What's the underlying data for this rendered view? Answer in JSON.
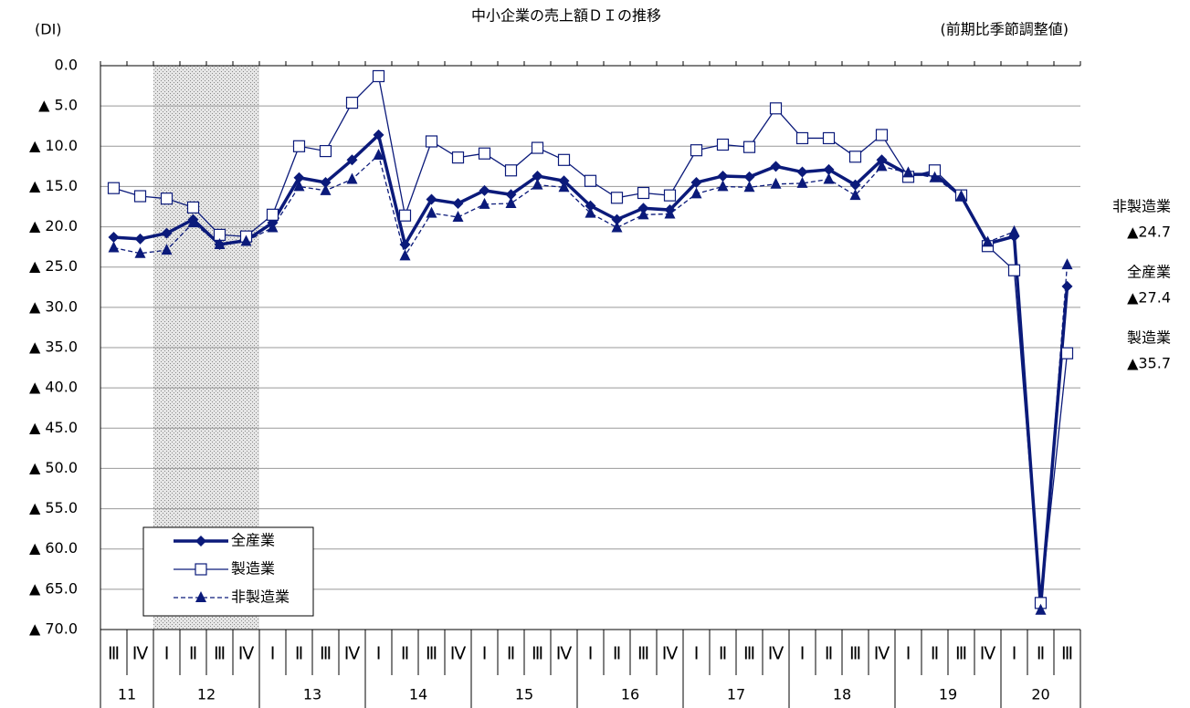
{
  "chart_data": {
    "type": "line",
    "title": "中小企業の売上額ＤＩの推移",
    "y_label": "(DI)",
    "subtitle": "(前期比季節調整値)",
    "categories": [
      "Ⅲ",
      "Ⅳ",
      "Ⅰ",
      "Ⅱ",
      "Ⅲ",
      "Ⅳ",
      "Ⅰ",
      "Ⅱ",
      "Ⅲ",
      "Ⅳ",
      "Ⅰ",
      "Ⅱ",
      "Ⅲ",
      "Ⅳ",
      "Ⅰ",
      "Ⅱ",
      "Ⅲ",
      "Ⅳ",
      "Ⅰ",
      "Ⅱ",
      "Ⅲ",
      "Ⅳ",
      "Ⅰ",
      "Ⅱ",
      "Ⅲ",
      "Ⅳ",
      "Ⅰ",
      "Ⅱ",
      "Ⅲ",
      "Ⅳ",
      "Ⅰ",
      "Ⅱ",
      "Ⅲ",
      "Ⅳ",
      "Ⅰ",
      "Ⅱ",
      "Ⅲ"
    ],
    "years": [
      "11",
      null,
      "12",
      null,
      null,
      null,
      "13",
      null,
      null,
      null,
      "14",
      null,
      null,
      null,
      "15",
      null,
      null,
      null,
      "16",
      null,
      null,
      null,
      "17",
      null,
      null,
      null,
      "18",
      null,
      null,
      null,
      "19",
      null,
      null,
      null,
      "20",
      null,
      null
    ],
    "shaded": [
      2,
      5
    ],
    "ylim": [
      -70,
      0
    ],
    "yticks": [
      {
        "value": 0,
        "label": "0.0"
      },
      {
        "value": -5,
        "label": "▲ 5.0"
      },
      {
        "value": -10,
        "label": "▲ 10.0"
      },
      {
        "value": -15,
        "label": "▲ 15.0"
      },
      {
        "value": -20,
        "label": "▲ 20.0"
      },
      {
        "value": -25,
        "label": "▲ 25.0"
      },
      {
        "value": -30,
        "label": "▲ 30.0"
      },
      {
        "value": -35,
        "label": "▲ 35.0"
      },
      {
        "value": -40,
        "label": "▲ 40.0"
      },
      {
        "value": -45,
        "label": "▲ 45.0"
      },
      {
        "value": -50,
        "label": "▲ 50.0"
      },
      {
        "value": -55,
        "label": "▲ 55.0"
      },
      {
        "value": -60,
        "label": "▲ 60.0"
      },
      {
        "value": -65,
        "label": "▲ 65.0"
      },
      {
        "value": -70,
        "label": "▲ 70.0"
      }
    ],
    "grid": true,
    "series": [
      {
        "name": "全産業",
        "color": "#0b1a7a",
        "marker": "diamond",
        "line": "thick",
        "end_label": "▲27.4",
        "values": [
          -21.3,
          -21.5,
          -20.8,
          -19.1,
          -22.2,
          -21.7,
          -19.5,
          -13.9,
          -14.5,
          -11.7,
          -8.6,
          -22.2,
          -16.6,
          -17.1,
          -15.5,
          -16.0,
          -13.7,
          -14.3,
          -17.4,
          -19.1,
          -17.7,
          -17.9,
          -14.5,
          -13.7,
          -13.8,
          -12.5,
          -13.2,
          -12.9,
          -14.8,
          -11.7,
          -13.5,
          -13.5,
          -16.2,
          -22.1,
          -21.2,
          -67.1,
          -27.4
        ]
      },
      {
        "name": "製造業",
        "color": "#0b1a7a",
        "marker": "square",
        "line": "thin",
        "end_label": "▲35.7",
        "values": [
          -15.2,
          -16.2,
          -16.5,
          -17.6,
          -21.0,
          -21.2,
          -18.5,
          -10.0,
          -10.6,
          -4.6,
          -1.3,
          -18.6,
          -9.4,
          -11.4,
          -10.9,
          -13.0,
          -10.2,
          -11.7,
          -14.3,
          -16.4,
          -15.8,
          -16.1,
          -10.5,
          -9.8,
          -10.1,
          -5.3,
          -9.0,
          -9.0,
          -11.3,
          -8.6,
          -13.8,
          -13.0,
          -16.1,
          -22.4,
          -25.4,
          -66.7,
          -35.7
        ]
      },
      {
        "name": "非製造業",
        "color": "#0b1a7a",
        "marker": "triangle",
        "line": "dashed",
        "end_label": "▲24.7",
        "values": [
          -22.6,
          -23.3,
          -22.9,
          -19.5,
          -22.2,
          -21.8,
          -20.1,
          -15.0,
          -15.5,
          -14.1,
          -11.1,
          -23.6,
          -18.3,
          -18.8,
          -17.2,
          -17.1,
          -14.8,
          -15.1,
          -18.3,
          -20.1,
          -18.5,
          -18.4,
          -15.9,
          -15.0,
          -15.1,
          -14.7,
          -14.6,
          -14.1,
          -16.1,
          -12.5,
          -13.3,
          -13.9,
          -16.2,
          -21.9,
          -20.6,
          -67.6,
          -24.7
        ]
      }
    ]
  }
}
